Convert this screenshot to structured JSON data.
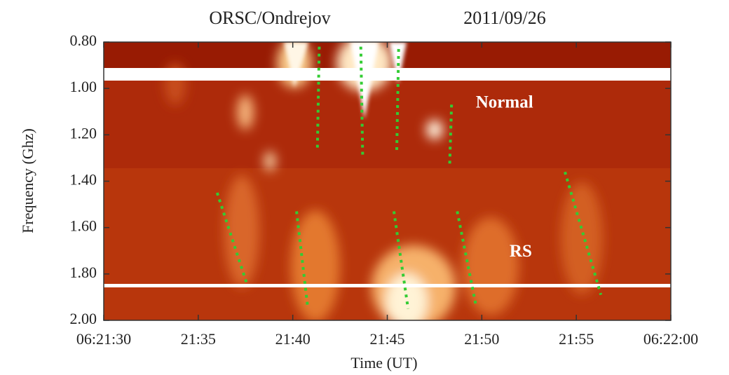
{
  "chart_data": {
    "type": "spectrogram",
    "title": "ORSC/Ondrejov",
    "subtitle": "2011/09/26",
    "x_label": "Time (UT)",
    "y_label": "Frequency (Ghz)",
    "xlim": [
      30,
      60
    ],
    "xticks": [
      {
        "value": 30,
        "label": "06:21:30"
      },
      {
        "value": 35,
        "label": "21:35"
      },
      {
        "value": 40,
        "label": "21:40"
      },
      {
        "value": 45,
        "label": "21:45"
      },
      {
        "value": 50,
        "label": "21:50"
      },
      {
        "value": 55,
        "label": "21:55"
      },
      {
        "value": 60,
        "label": "06:22:00"
      }
    ],
    "ylim": [
      2.0,
      0.8
    ],
    "yticks": [
      {
        "value": 0.8,
        "label": "0.80"
      },
      {
        "value": 1.0,
        "label": "1.00"
      },
      {
        "value": 1.2,
        "label": "1.20"
      },
      {
        "value": 1.4,
        "label": "1.40"
      },
      {
        "value": 1.6,
        "label": "1.60"
      },
      {
        "value": 1.8,
        "label": "1.80"
      },
      {
        "value": 2.0,
        "label": "2.00"
      }
    ],
    "track_color": "#33cc33",
    "tracks": [
      {
        "x": [
          41.4,
          41.3
        ],
        "y": [
          0.82,
          1.27
        ]
      },
      {
        "x": [
          43.6,
          43.7
        ],
        "y": [
          0.82,
          1.3
        ]
      },
      {
        "x": [
          45.6,
          45.5
        ],
        "y": [
          0.83,
          1.27
        ]
      },
      {
        "x": [
          48.4,
          48.3
        ],
        "y": [
          1.07,
          1.33
        ]
      },
      {
        "x": [
          36.0,
          37.6
        ],
        "y": [
          1.45,
          1.85
        ]
      },
      {
        "x": [
          40.2,
          40.8
        ],
        "y": [
          1.53,
          1.95
        ]
      },
      {
        "x": [
          45.35,
          46.1
        ],
        "y": [
          1.53,
          1.95
        ]
      },
      {
        "x": [
          48.7,
          49.7
        ],
        "y": [
          1.53,
          1.94
        ]
      },
      {
        "x": [
          54.4,
          56.3
        ],
        "y": [
          1.36,
          1.89
        ]
      }
    ],
    "annotations": [
      {
        "text": "Normal",
        "x": 51.2,
        "y": 1.066
      },
      {
        "text": "RS",
        "x": 52.06,
        "y": 1.707
      }
    ]
  }
}
